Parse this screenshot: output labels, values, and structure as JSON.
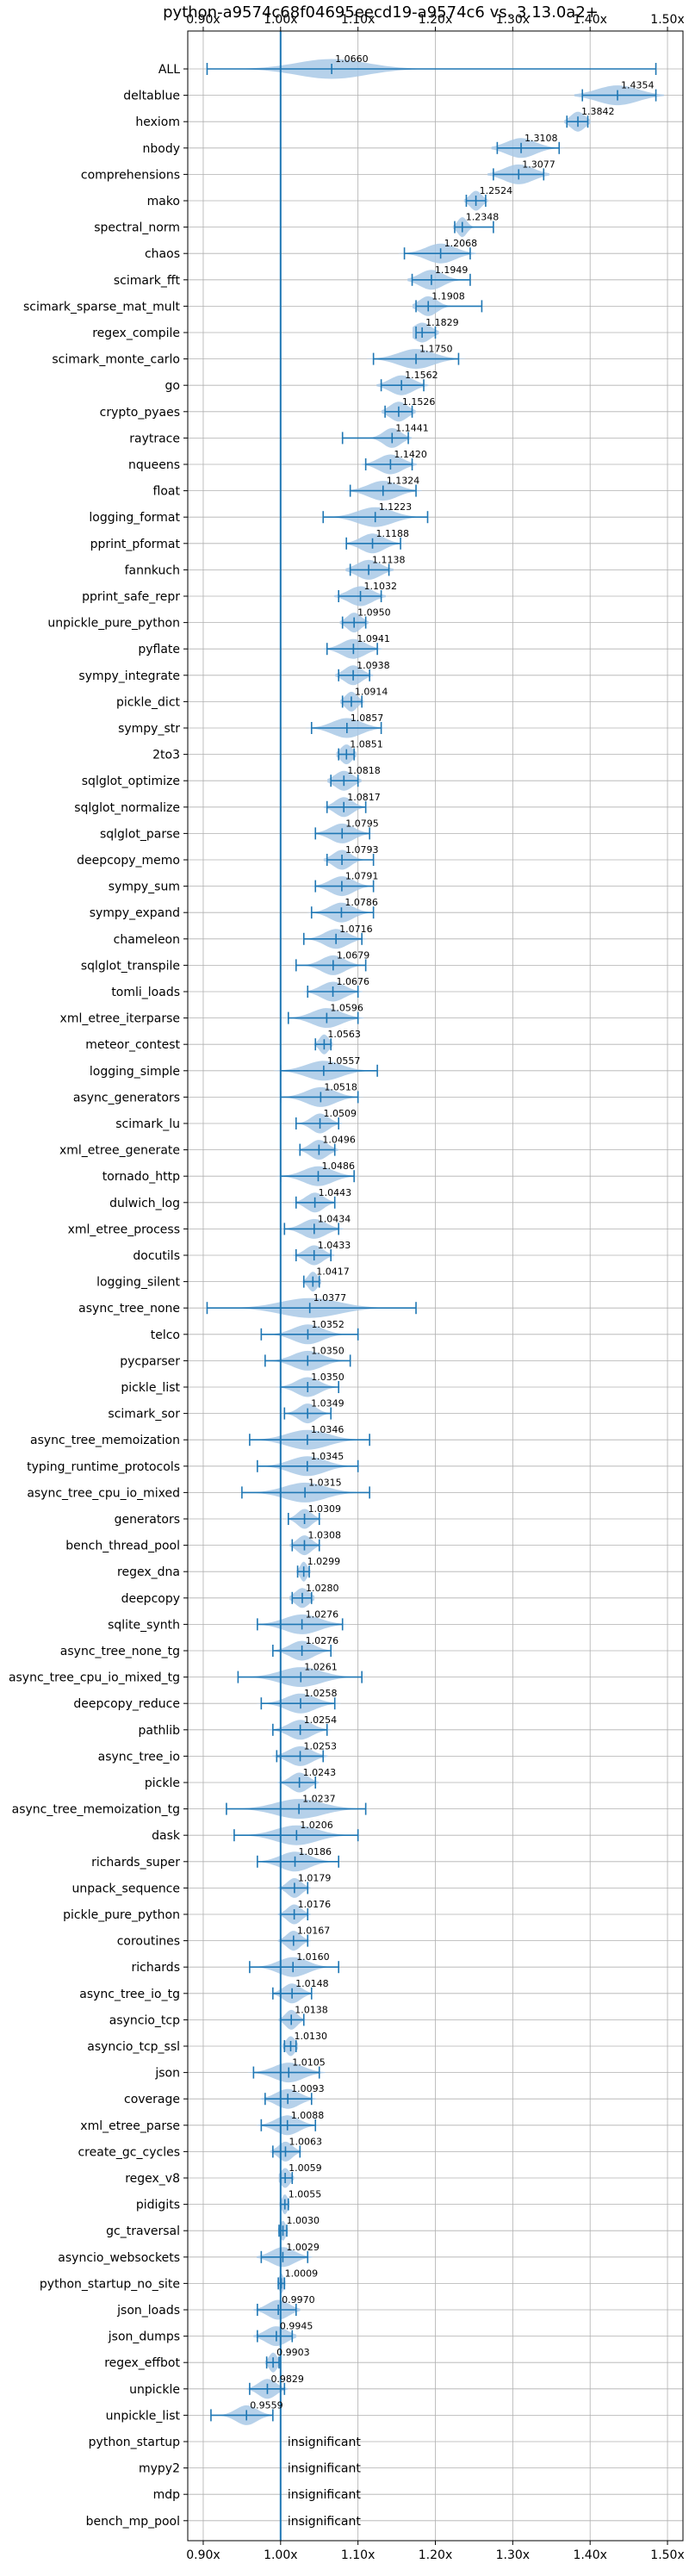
{
  "chart_data": {
    "type": "violin",
    "title": "python-a9574c68f04695eecd19-a9574c6 vs. 3.13.0a2+",
    "xlim": [
      0.88,
      1.52
    ],
    "x_ticks": [
      {
        "value": 0.9,
        "label": "0.90x"
      },
      {
        "value": 1.0,
        "label": "1.00x"
      },
      {
        "value": 1.1,
        "label": "1.10x"
      },
      {
        "value": 1.2,
        "label": "1.20x"
      },
      {
        "value": 1.3,
        "label": "1.30x"
      },
      {
        "value": 1.4,
        "label": "1.40x"
      },
      {
        "value": 1.5,
        "label": "1.50x"
      }
    ],
    "reference_line": 1.0,
    "grid": true,
    "insignificant_label": "insignificant",
    "rows": [
      {
        "name": "ALL",
        "mean": 1.066,
        "label": "1.0660",
        "min": 0.905,
        "max": 1.485,
        "spread": 0.06
      },
      {
        "name": "deltablue",
        "mean": 1.4354,
        "label": "1.4354",
        "min": 1.39,
        "max": 1.485,
        "spread": 0.035
      },
      {
        "name": "hexiom",
        "mean": 1.3842,
        "label": "1.3842",
        "min": 1.37,
        "max": 1.397,
        "spread": 0.012
      },
      {
        "name": "nbody",
        "mean": 1.3108,
        "label": "1.3108",
        "min": 1.28,
        "max": 1.36,
        "spread": 0.025
      },
      {
        "name": "comprehensions",
        "mean": 1.3077,
        "label": "1.3077",
        "min": 1.275,
        "max": 1.34,
        "spread": 0.025
      },
      {
        "name": "mako",
        "mean": 1.2524,
        "label": "1.2524",
        "min": 1.24,
        "max": 1.265,
        "spread": 0.01
      },
      {
        "name": "spectral_norm",
        "mean": 1.2348,
        "label": "1.2348",
        "min": 1.225,
        "max": 1.275,
        "spread": 0.008
      },
      {
        "name": "chaos",
        "mean": 1.2068,
        "label": "1.2068",
        "min": 1.16,
        "max": 1.245,
        "spread": 0.025
      },
      {
        "name": "scimark_fft",
        "mean": 1.1949,
        "label": "1.1949",
        "min": 1.17,
        "max": 1.245,
        "spread": 0.02
      },
      {
        "name": "scimark_sparse_mat_mult",
        "mean": 1.1908,
        "label": "1.1908",
        "min": 1.175,
        "max": 1.26,
        "spread": 0.015
      },
      {
        "name": "regex_compile",
        "mean": 1.1829,
        "label": "1.1829",
        "min": 1.175,
        "max": 1.2,
        "spread": 0.015
      },
      {
        "name": "scimark_monte_carlo",
        "mean": 1.175,
        "label": "1.1750",
        "min": 1.12,
        "max": 1.23,
        "spread": 0.03
      },
      {
        "name": "go",
        "mean": 1.1562,
        "label": "1.1562",
        "min": 1.13,
        "max": 1.185,
        "spread": 0.02
      },
      {
        "name": "crypto_pyaes",
        "mean": 1.1526,
        "label": "1.1526",
        "min": 1.135,
        "max": 1.17,
        "spread": 0.015
      },
      {
        "name": "raytrace",
        "mean": 1.1441,
        "label": "1.1441",
        "min": 1.08,
        "max": 1.165,
        "spread": 0.015
      },
      {
        "name": "nqueens",
        "mean": 1.142,
        "label": "1.1420",
        "min": 1.11,
        "max": 1.17,
        "spread": 0.02
      },
      {
        "name": "float",
        "mean": 1.1324,
        "label": "1.1324",
        "min": 1.09,
        "max": 1.175,
        "spread": 0.025
      },
      {
        "name": "logging_format",
        "mean": 1.1223,
        "label": "1.1223",
        "min": 1.055,
        "max": 1.19,
        "spread": 0.03
      },
      {
        "name": "pprint_pformat",
        "mean": 1.1188,
        "label": "1.1188",
        "min": 1.085,
        "max": 1.155,
        "spread": 0.02
      },
      {
        "name": "fannkuch",
        "mean": 1.1138,
        "label": "1.1138",
        "min": 1.09,
        "max": 1.14,
        "spread": 0.02
      },
      {
        "name": "pprint_safe_repr",
        "mean": 1.1032,
        "label": "1.1032",
        "min": 1.075,
        "max": 1.13,
        "spread": 0.02
      },
      {
        "name": "unpickle_pure_python",
        "mean": 1.095,
        "label": "1.0950",
        "min": 1.08,
        "max": 1.11,
        "spread": 0.012
      },
      {
        "name": "pyflate",
        "mean": 1.0941,
        "label": "1.0941",
        "min": 1.06,
        "max": 1.125,
        "spread": 0.02
      },
      {
        "name": "sympy_integrate",
        "mean": 1.0938,
        "label": "1.0938",
        "min": 1.075,
        "max": 1.115,
        "spread": 0.015
      },
      {
        "name": "pickle_dict",
        "mean": 1.0914,
        "label": "1.0914",
        "min": 1.08,
        "max": 1.105,
        "spread": 0.01
      },
      {
        "name": "sympy_str",
        "mean": 1.0857,
        "label": "1.0857",
        "min": 1.04,
        "max": 1.13,
        "spread": 0.025
      },
      {
        "name": "2to3",
        "mean": 1.0851,
        "label": "1.0851",
        "min": 1.075,
        "max": 1.095,
        "spread": 0.01
      },
      {
        "name": "sqlglot_optimize",
        "mean": 1.0818,
        "label": "1.0818",
        "min": 1.065,
        "max": 1.1,
        "spread": 0.015
      },
      {
        "name": "sqlglot_normalize",
        "mean": 1.0817,
        "label": "1.0817",
        "min": 1.06,
        "max": 1.11,
        "spread": 0.015
      },
      {
        "name": "sqlglot_parse",
        "mean": 1.0795,
        "label": "1.0795",
        "min": 1.045,
        "max": 1.115,
        "spread": 0.02
      },
      {
        "name": "deepcopy_memo",
        "mean": 1.0793,
        "label": "1.0793",
        "min": 1.06,
        "max": 1.12,
        "spread": 0.015
      },
      {
        "name": "sympy_sum",
        "mean": 1.0791,
        "label": "1.0791",
        "min": 1.045,
        "max": 1.12,
        "spread": 0.02
      },
      {
        "name": "sympy_expand",
        "mean": 1.0786,
        "label": "1.0786",
        "min": 1.04,
        "max": 1.12,
        "spread": 0.02
      },
      {
        "name": "chameleon",
        "mean": 1.0716,
        "label": "1.0716",
        "min": 1.03,
        "max": 1.105,
        "spread": 0.02
      },
      {
        "name": "sqlglot_transpile",
        "mean": 1.0679,
        "label": "1.0679",
        "min": 1.02,
        "max": 1.11,
        "spread": 0.02
      },
      {
        "name": "tomli_loads",
        "mean": 1.0676,
        "label": "1.0676",
        "min": 1.035,
        "max": 1.1,
        "spread": 0.02
      },
      {
        "name": "xml_etree_iterparse",
        "mean": 1.0596,
        "label": "1.0596",
        "min": 1.01,
        "max": 1.1,
        "spread": 0.025
      },
      {
        "name": "meteor_contest",
        "mean": 1.0563,
        "label": "1.0563",
        "min": 1.045,
        "max": 1.065,
        "spread": 0.008
      },
      {
        "name": "logging_simple",
        "mean": 1.0557,
        "label": "1.0557",
        "min": 1.0,
        "max": 1.125,
        "spread": 0.03
      },
      {
        "name": "async_generators",
        "mean": 1.0518,
        "label": "1.0518",
        "min": 1.0,
        "max": 1.1,
        "spread": 0.025
      },
      {
        "name": "scimark_lu",
        "mean": 1.0509,
        "label": "1.0509",
        "min": 1.02,
        "max": 1.075,
        "spread": 0.015
      },
      {
        "name": "xml_etree_generate",
        "mean": 1.0496,
        "label": "1.0496",
        "min": 1.025,
        "max": 1.07,
        "spread": 0.015
      },
      {
        "name": "tornado_http",
        "mean": 1.0486,
        "label": "1.0486",
        "min": 1.0,
        "max": 1.095,
        "spread": 0.025
      },
      {
        "name": "dulwich_log",
        "mean": 1.0443,
        "label": "1.0443",
        "min": 1.02,
        "max": 1.07,
        "spread": 0.015
      },
      {
        "name": "xml_etree_process",
        "mean": 1.0434,
        "label": "1.0434",
        "min": 1.005,
        "max": 1.075,
        "spread": 0.02
      },
      {
        "name": "docutils",
        "mean": 1.0433,
        "label": "1.0433",
        "min": 1.02,
        "max": 1.065,
        "spread": 0.015
      },
      {
        "name": "logging_silent",
        "mean": 1.0417,
        "label": "1.0417",
        "min": 1.03,
        "max": 1.05,
        "spread": 0.008
      },
      {
        "name": "async_tree_none",
        "mean": 1.0377,
        "label": "1.0377",
        "min": 0.905,
        "max": 1.175,
        "spread": 0.05
      },
      {
        "name": "telco",
        "mean": 1.0352,
        "label": "1.0352",
        "min": 0.975,
        "max": 1.1,
        "spread": 0.025
      },
      {
        "name": "pycparser",
        "mean": 1.035,
        "label": "1.0350",
        "min": 0.98,
        "max": 1.09,
        "spread": 0.025
      },
      {
        "name": "pickle_list",
        "mean": 1.035,
        "label": "1.0350",
        "min": 1.0,
        "max": 1.075,
        "spread": 0.02
      },
      {
        "name": "scimark_sor",
        "mean": 1.0349,
        "label": "1.0349",
        "min": 1.005,
        "max": 1.065,
        "spread": 0.015
      },
      {
        "name": "async_tree_memoization",
        "mean": 1.0346,
        "label": "1.0346",
        "min": 0.96,
        "max": 1.115,
        "spread": 0.035
      },
      {
        "name": "typing_runtime_protocols",
        "mean": 1.0345,
        "label": "1.0345",
        "min": 0.97,
        "max": 1.1,
        "spread": 0.03
      },
      {
        "name": "async_tree_cpu_io_mixed",
        "mean": 1.0315,
        "label": "1.0315",
        "min": 0.95,
        "max": 1.115,
        "spread": 0.035
      },
      {
        "name": "generators",
        "mean": 1.0309,
        "label": "1.0309",
        "min": 1.01,
        "max": 1.05,
        "spread": 0.012
      },
      {
        "name": "bench_thread_pool",
        "mean": 1.0308,
        "label": "1.0308",
        "min": 1.015,
        "max": 1.05,
        "spread": 0.012
      },
      {
        "name": "regex_dna",
        "mean": 1.0299,
        "label": "1.0299",
        "min": 1.022,
        "max": 1.037,
        "spread": 0.006
      },
      {
        "name": "deepcopy",
        "mean": 1.028,
        "label": "1.0280",
        "min": 1.015,
        "max": 1.04,
        "spread": 0.012
      },
      {
        "name": "sqlite_synth",
        "mean": 1.0276,
        "label": "1.0276",
        "min": 0.97,
        "max": 1.08,
        "spread": 0.03
      },
      {
        "name": "async_tree_none_tg",
        "mean": 1.0276,
        "label": "1.0276",
        "min": 0.99,
        "max": 1.065,
        "spread": 0.02
      },
      {
        "name": "async_tree_cpu_io_mixed_tg",
        "mean": 1.0261,
        "label": "1.0261",
        "min": 0.945,
        "max": 1.105,
        "spread": 0.035
      },
      {
        "name": "deepcopy_reduce",
        "mean": 1.0258,
        "label": "1.0258",
        "min": 0.975,
        "max": 1.07,
        "spread": 0.025
      },
      {
        "name": "pathlib",
        "mean": 1.0254,
        "label": "1.0254",
        "min": 0.99,
        "max": 1.06,
        "spread": 0.02
      },
      {
        "name": "async_tree_io",
        "mean": 1.0253,
        "label": "1.0253",
        "min": 0.995,
        "max": 1.055,
        "spread": 0.02
      },
      {
        "name": "pickle",
        "mean": 1.0243,
        "label": "1.0243",
        "min": 1.0,
        "max": 1.045,
        "spread": 0.015
      },
      {
        "name": "async_tree_memoization_tg",
        "mean": 1.0237,
        "label": "1.0237",
        "min": 0.93,
        "max": 1.11,
        "spread": 0.04
      },
      {
        "name": "dask",
        "mean": 1.0206,
        "label": "1.0206",
        "min": 0.94,
        "max": 1.1,
        "spread": 0.035
      },
      {
        "name": "richards_super",
        "mean": 1.0186,
        "label": "1.0186",
        "min": 0.97,
        "max": 1.075,
        "spread": 0.025
      },
      {
        "name": "unpack_sequence",
        "mean": 1.0179,
        "label": "1.0179",
        "min": 1.0,
        "max": 1.035,
        "spread": 0.012
      },
      {
        "name": "pickle_pure_python",
        "mean": 1.0176,
        "label": "1.0176",
        "min": 1.0,
        "max": 1.035,
        "spread": 0.012
      },
      {
        "name": "coroutines",
        "mean": 1.0167,
        "label": "1.0167",
        "min": 1.0,
        "max": 1.035,
        "spread": 0.012
      },
      {
        "name": "richards",
        "mean": 1.016,
        "label": "1.0160",
        "min": 0.96,
        "max": 1.075,
        "spread": 0.025
      },
      {
        "name": "async_tree_io_tg",
        "mean": 1.0148,
        "label": "1.0148",
        "min": 0.99,
        "max": 1.04,
        "spread": 0.015
      },
      {
        "name": "asyncio_tcp",
        "mean": 1.0138,
        "label": "1.0138",
        "min": 1.0,
        "max": 1.03,
        "spread": 0.01
      },
      {
        "name": "asyncio_tcp_ssl",
        "mean": 1.013,
        "label": "1.0130",
        "min": 1.005,
        "max": 1.02,
        "spread": 0.008
      },
      {
        "name": "json",
        "mean": 1.0105,
        "label": "1.0105",
        "min": 0.965,
        "max": 1.05,
        "spread": 0.025
      },
      {
        "name": "coverage",
        "mean": 1.0093,
        "label": "1.0093",
        "min": 0.98,
        "max": 1.04,
        "spread": 0.02
      },
      {
        "name": "xml_etree_parse",
        "mean": 1.0088,
        "label": "1.0088",
        "min": 0.975,
        "max": 1.045,
        "spread": 0.02
      },
      {
        "name": "create_gc_cycles",
        "mean": 1.0063,
        "label": "1.0063",
        "min": 0.99,
        "max": 1.025,
        "spread": 0.012
      },
      {
        "name": "regex_v8",
        "mean": 1.0059,
        "label": "1.0059",
        "min": 1.0,
        "max": 1.015,
        "spread": 0.008
      },
      {
        "name": "pidigits",
        "mean": 1.0055,
        "label": "1.0055",
        "min": 1.0,
        "max": 1.01,
        "spread": 0.005
      },
      {
        "name": "gc_traversal",
        "mean": 1.003,
        "label": "1.0030",
        "min": 0.998,
        "max": 1.008,
        "spread": 0.005
      },
      {
        "name": "asyncio_websockets",
        "mean": 1.0029,
        "label": "1.0029",
        "min": 0.975,
        "max": 1.035,
        "spread": 0.02
      },
      {
        "name": "python_startup_no_site",
        "mean": 1.0009,
        "label": "1.0009",
        "min": 0.997,
        "max": 1.005,
        "spread": 0.004
      },
      {
        "name": "json_loads",
        "mean": 0.997,
        "label": "0.9970",
        "min": 0.97,
        "max": 1.02,
        "spread": 0.018
      },
      {
        "name": "json_dumps",
        "mean": 0.9945,
        "label": "0.9945",
        "min": 0.97,
        "max": 1.015,
        "spread": 0.018
      },
      {
        "name": "regex_effbot",
        "mean": 0.9903,
        "label": "0.9903",
        "min": 0.982,
        "max": 0.998,
        "spread": 0.007
      },
      {
        "name": "unpickle",
        "mean": 0.9829,
        "label": "0.9829",
        "min": 0.96,
        "max": 1.005,
        "spread": 0.015
      },
      {
        "name": "unpickle_list",
        "mean": 0.9559,
        "label": "0.9559",
        "min": 0.91,
        "max": 0.99,
        "spread": 0.018
      },
      {
        "name": "python_startup",
        "insignificant": true
      },
      {
        "name": "mypy2",
        "insignificant": true
      },
      {
        "name": "mdp",
        "insignificant": true
      },
      {
        "name": "bench_mp_pool",
        "insignificant": true
      }
    ]
  }
}
